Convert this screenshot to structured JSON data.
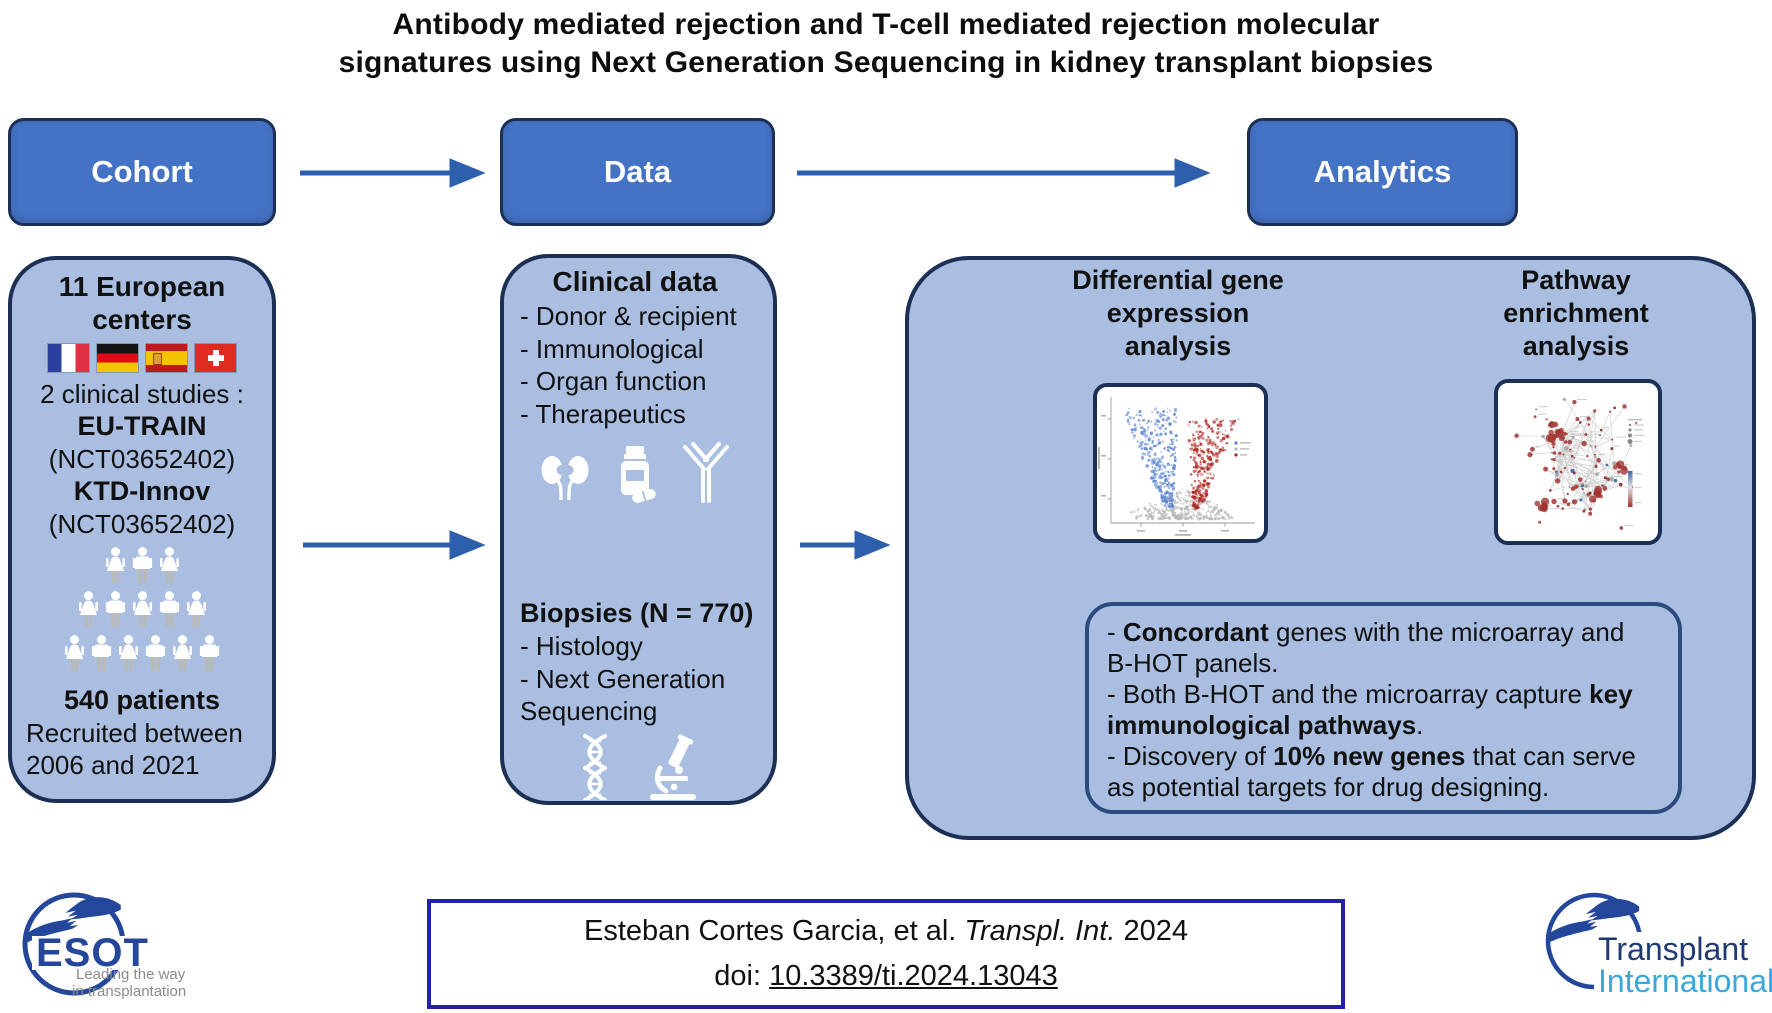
{
  "title": {
    "line1": "Antibody mediated rejection and T-cell mediated rejection molecular",
    "line2": "signatures using Next Generation Sequencing in kidney transplant biopsies"
  },
  "flow": {
    "steps": [
      {
        "label": "Cohort"
      },
      {
        "label": "Data"
      },
      {
        "label": "Analytics"
      }
    ]
  },
  "cohort": {
    "centers_line1": "11 European",
    "centers_line2": "centers",
    "flags": [
      "france",
      "germany",
      "spain",
      "switzerland"
    ],
    "studies_label": "2 clinical studies :",
    "study1_name": "EU-TRAIN",
    "study1_id": "(NCT03652402)",
    "study2_name": "KTD-Innov",
    "study2_id": "(NCT03652402)",
    "pictogram_rows": [
      3,
      5,
      6
    ],
    "patients": "540 patients",
    "recruited_line1": "Recruited between",
    "recruited_line2": "2006 and 2021"
  },
  "data_panel": {
    "clinical_title": "Clinical data",
    "clinical_items": [
      "- Donor & recipient",
      "- Immunological",
      "- Organ function",
      "- Therapeutics"
    ],
    "clinical_icons": [
      "kidneys-icon",
      "medicine-bottle-icon",
      "antibody-icon"
    ],
    "biopsies_title": "Biopsies (N = 770)",
    "biopsies_items": [
      "- Histology",
      "- Next Generation",
      "Sequencing"
    ],
    "biopsies_icons": [
      "dna-icon",
      "microscope-icon"
    ]
  },
  "analytics": {
    "col1_title": "Differential gene\nexpression\nanalysis",
    "col2_title": "Pathway\nenrichment\nanalysis",
    "findings": [
      [
        {
          "t": "- "
        },
        {
          "t": "Concordant",
          "b": true
        },
        {
          "t": " genes with the microarray and"
        },
        {
          "br": true
        },
        {
          "t": "B-HOT panels."
        }
      ],
      [
        {
          "t": "- Both B-HOT and the microarray capture "
        },
        {
          "t": "key",
          "b": true
        },
        {
          "br": true
        },
        {
          "t": "immunological pathways",
          "b": true
        },
        {
          "t": "."
        }
      ],
      [
        {
          "t": "- Discovery of "
        },
        {
          "t": "10% new genes",
          "b": true
        },
        {
          "t": " that can serve"
        },
        {
          "br": true
        },
        {
          "t": "as potential targets for drug designing."
        }
      ]
    ],
    "volcano_colors": {
      "down_blue": "#5b84cf",
      "up_red": "#b02620",
      "ns_gray": "#b7b7b7"
    },
    "network_colors": {
      "node_red": "#a03430",
      "node_blue": "#3e62a8",
      "node_gray": "#9a9a9a",
      "edge_gray": "#cccccc"
    }
  },
  "citation": {
    "line1": [
      {
        "t": "Esteban Cortes Garcia, et al. "
      },
      {
        "t": "Transpl. Int.",
        "i": true
      },
      {
        "t": " 2024"
      }
    ],
    "line2": [
      {
        "t": "doi: "
      },
      {
        "t": "10.3389/ti.2024.13043",
        "u": true
      }
    ]
  },
  "logos": {
    "esot": {
      "name": "ESOT",
      "tagline_line1": "Leading the way",
      "tagline_line2": "in transplantation",
      "blue": "#24479b"
    },
    "transplant_international": {
      "line1": "Transplant",
      "line2": "International",
      "dark_blue": "#1e3a70",
      "light_blue": "#3aa8da"
    }
  },
  "palette": {
    "header_fill": "#4472c4",
    "panel_fill": "#a9bee1",
    "border_navy": "#1c2f54",
    "arrow_blue": "#2e5fad",
    "citation_border": "#2222a8"
  }
}
